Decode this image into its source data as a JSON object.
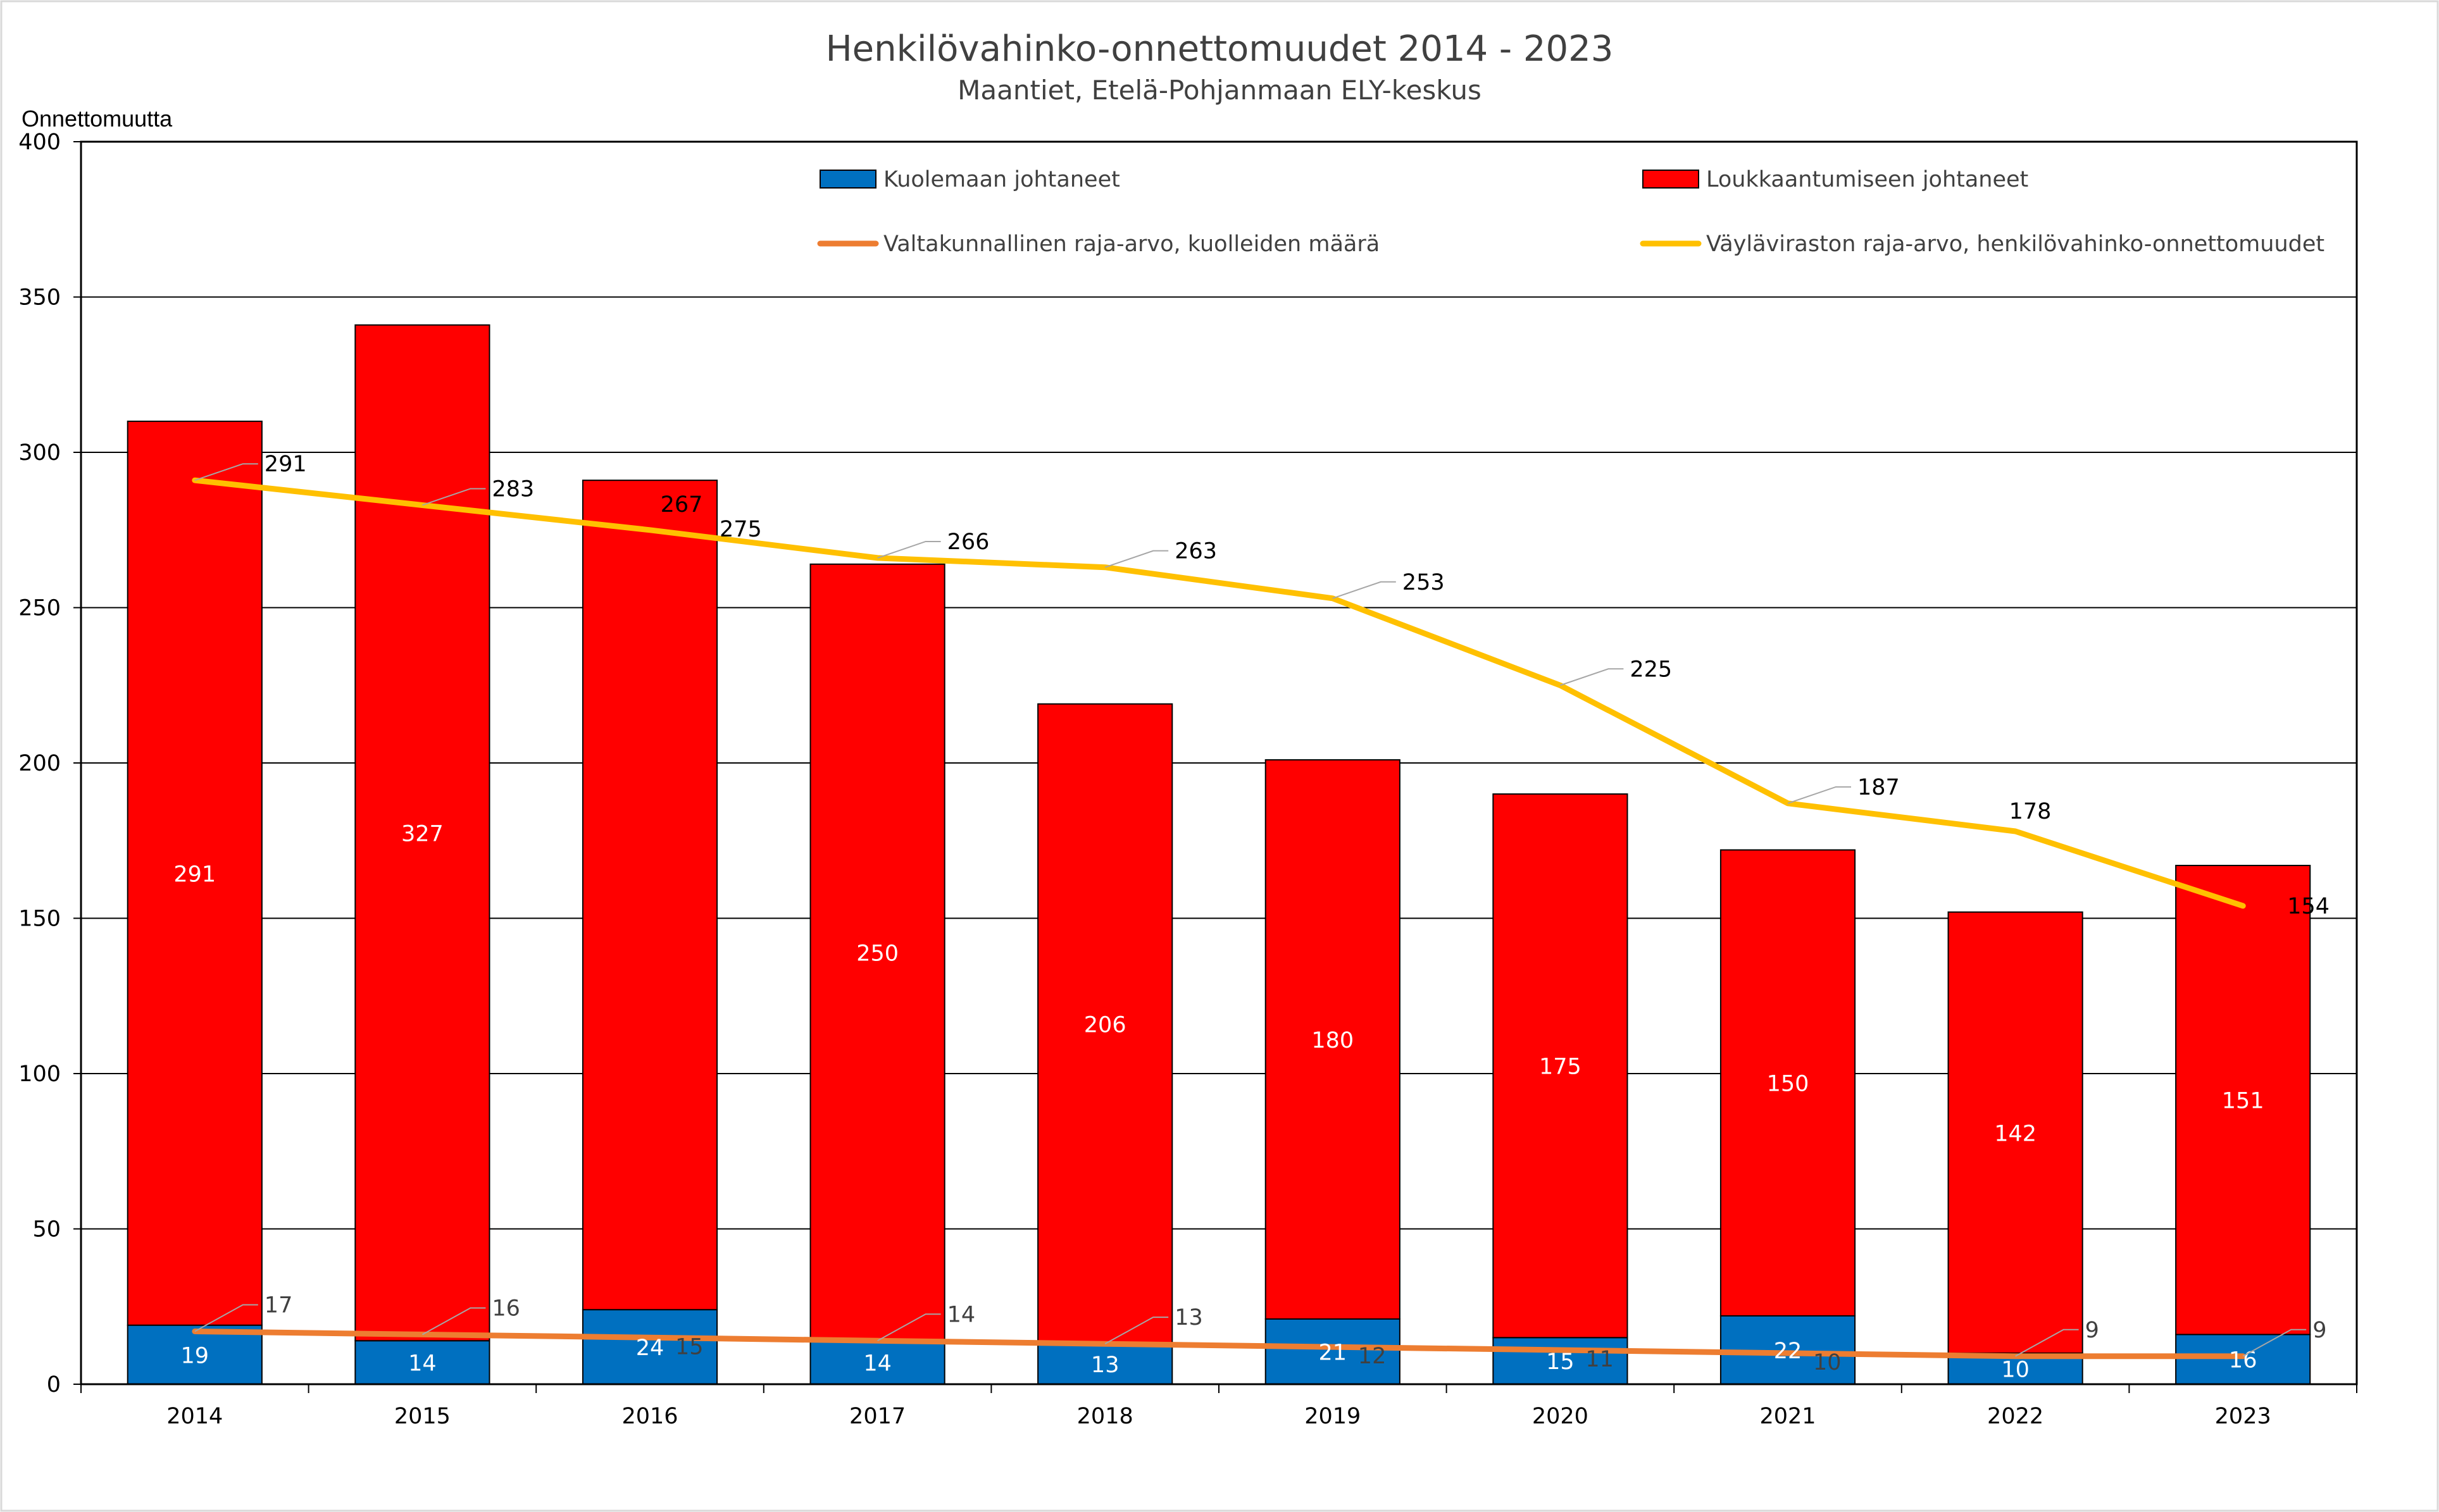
{
  "chart_data": {
    "type": "bar",
    "stacked": true,
    "title": "Henkilövahinko-onnettomuudet 2014 - 2023",
    "subtitle": "Maantiet, Etelä-Pohjanmaan ELY-keskus",
    "ylabel": "Onnettomuutta",
    "xlabel": "",
    "ylim": [
      0,
      400
    ],
    "yticks": [
      0,
      50,
      100,
      150,
      200,
      250,
      300,
      350,
      400
    ],
    "grid": true,
    "legend_position": "top-inside",
    "categories": [
      "2014",
      "2015",
      "2016",
      "2017",
      "2018",
      "2019",
      "2020",
      "2021",
      "2022",
      "2023"
    ],
    "series": [
      {
        "name": "Kuolemaan johtaneet",
        "kind": "bar",
        "color": "#0070c0",
        "values": [
          19,
          14,
          24,
          14,
          13,
          21,
          15,
          22,
          10,
          16
        ]
      },
      {
        "name": "Loukkaantumiseen johtaneet",
        "kind": "bar",
        "color": "#ff0000",
        "values": [
          291,
          327,
          267,
          250,
          206,
          180,
          175,
          150,
          142,
          151
        ]
      },
      {
        "name": "Valtakunnallinen raja-arvo, kuolleiden määrä",
        "kind": "line",
        "color": "#ed7d31",
        "values": [
          17,
          16,
          15,
          14,
          13,
          12,
          11,
          10,
          9,
          9
        ]
      },
      {
        "name": "Väyläviraston raja-arvo, henkilövahinko-onnettomuudet",
        "kind": "line",
        "color": "#ffc000",
        "values": [
          291,
          283,
          275,
          266,
          263,
          253,
          225,
          187,
          178,
          154
        ]
      }
    ]
  }
}
